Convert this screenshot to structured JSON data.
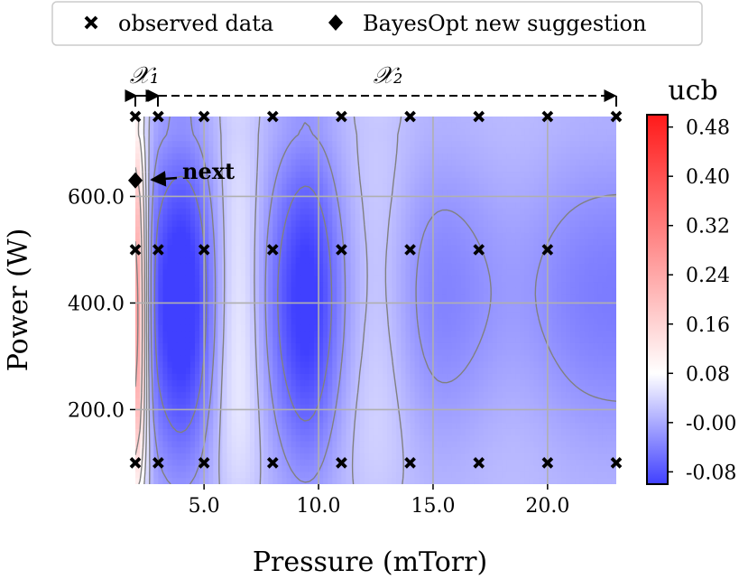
{
  "chart_data": {
    "type": "heatmap",
    "xlabel": "Pressure (mTorr)",
    "ylabel": "Power (W)",
    "xlim": [
      2.0,
      23.0
    ],
    "ylim": [
      60,
      750
    ],
    "x_ticks": [
      "5.0",
      "10.0",
      "15.0",
      "20.0"
    ],
    "x_tick_values": [
      5,
      10,
      15,
      20
    ],
    "y_ticks": [
      "200.0",
      "400.0",
      "600.0"
    ],
    "y_tick_values": [
      200,
      400,
      600
    ],
    "grid": true,
    "legend_position": "top",
    "legend": {
      "observed_label": "observed data",
      "suggestion_label": "BayesOpt new suggestion"
    },
    "colorbar": {
      "label": "ucb",
      "ticks": [
        "0.48",
        "0.40",
        "0.32",
        "0.24",
        "0.16",
        "0.08",
        "-0.00",
        "-0.08"
      ],
      "tick_values": [
        0.48,
        0.4,
        0.32,
        0.24,
        0.16,
        0.08,
        0.0,
        -0.08
      ],
      "range": [
        -0.1,
        0.5
      ],
      "colormap": "bwr"
    },
    "regions": [
      {
        "label": "𝒳₁",
        "x_from": 2.0,
        "x_to": 3.0
      },
      {
        "label": "𝒳₂",
        "x_from": 3.0,
        "x_to": 23.0
      }
    ],
    "annotation": "next",
    "observed_points": {
      "x": [
        2,
        3,
        5,
        8,
        11,
        14,
        17,
        20,
        23
      ],
      "rows": [
        {
          "y": 750,
          "x": [
            2,
            3,
            5,
            8,
            11,
            14,
            17,
            20,
            23
          ]
        },
        {
          "y": 500,
          "x": [
            2,
            3,
            5,
            8,
            11,
            14,
            17,
            20
          ]
        },
        {
          "y": 100,
          "x": [
            2,
            3,
            5,
            8,
            11,
            14,
            17,
            20,
            23
          ]
        }
      ]
    },
    "suggestion_point": {
      "x": 2.0,
      "y": 630
    },
    "field_peaks": [
      {
        "x": 2.0,
        "width": 0.35,
        "value": 0.32
      },
      {
        "x": 4.0,
        "width": 0.9,
        "value": -0.08
      },
      {
        "x": 6.5,
        "width": 0.8,
        "value": 0.1
      },
      {
        "x": 9.5,
        "width": 0.9,
        "value": -0.07
      },
      {
        "x": 12.5,
        "width": 1.2,
        "value": 0.07
      },
      {
        "x": 18.5,
        "width": 1.6,
        "value": 0.03
      }
    ],
    "colors": {
      "low": "#4040ff",
      "mid": "#ffffff",
      "high": "#ff1a1a",
      "contour": "#808080",
      "grid": "#b0b0b0"
    }
  }
}
